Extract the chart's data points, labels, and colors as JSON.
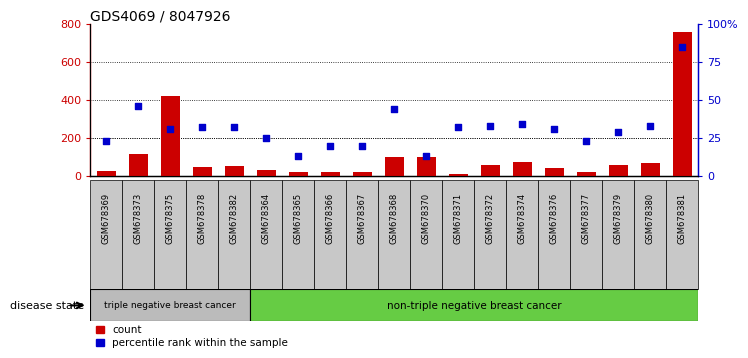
{
  "title": "GDS4069 / 8047926",
  "samples": [
    "GSM678369",
    "GSM678373",
    "GSM678375",
    "GSM678378",
    "GSM678382",
    "GSM678364",
    "GSM678365",
    "GSM678366",
    "GSM678367",
    "GSM678368",
    "GSM678370",
    "GSM678371",
    "GSM678372",
    "GSM678374",
    "GSM678376",
    "GSM678377",
    "GSM678379",
    "GSM678380",
    "GSM678381"
  ],
  "counts": [
    25,
    115,
    420,
    50,
    55,
    35,
    20,
    20,
    20,
    100,
    100,
    10,
    60,
    75,
    45,
    20,
    60,
    70,
    760
  ],
  "percentiles": [
    23,
    46,
    31,
    32,
    32,
    25,
    13,
    20,
    20,
    44,
    13,
    32,
    33,
    34,
    31,
    23,
    29,
    33,
    85
  ],
  "triple_neg_count": 5,
  "group1_label": "triple negative breast cancer",
  "group2_label": "non-triple negative breast cancer",
  "disease_state_label": "disease state",
  "legend_count": "count",
  "legend_pct": "percentile rank within the sample",
  "bar_color": "#CC0000",
  "dot_color": "#0000CC",
  "group1_bg": "#BBBBBB",
  "group2_bg": "#66CC44",
  "label_bg": "#C8C8C8",
  "ylim_left": [
    0,
    800
  ],
  "ylim_right": [
    0,
    100
  ],
  "yticks_left": [
    0,
    200,
    400,
    600,
    800
  ],
  "yticks_right": [
    0,
    25,
    50,
    75,
    100
  ],
  "grid_values": [
    200,
    400,
    600
  ],
  "background_color": "#FFFFFF"
}
